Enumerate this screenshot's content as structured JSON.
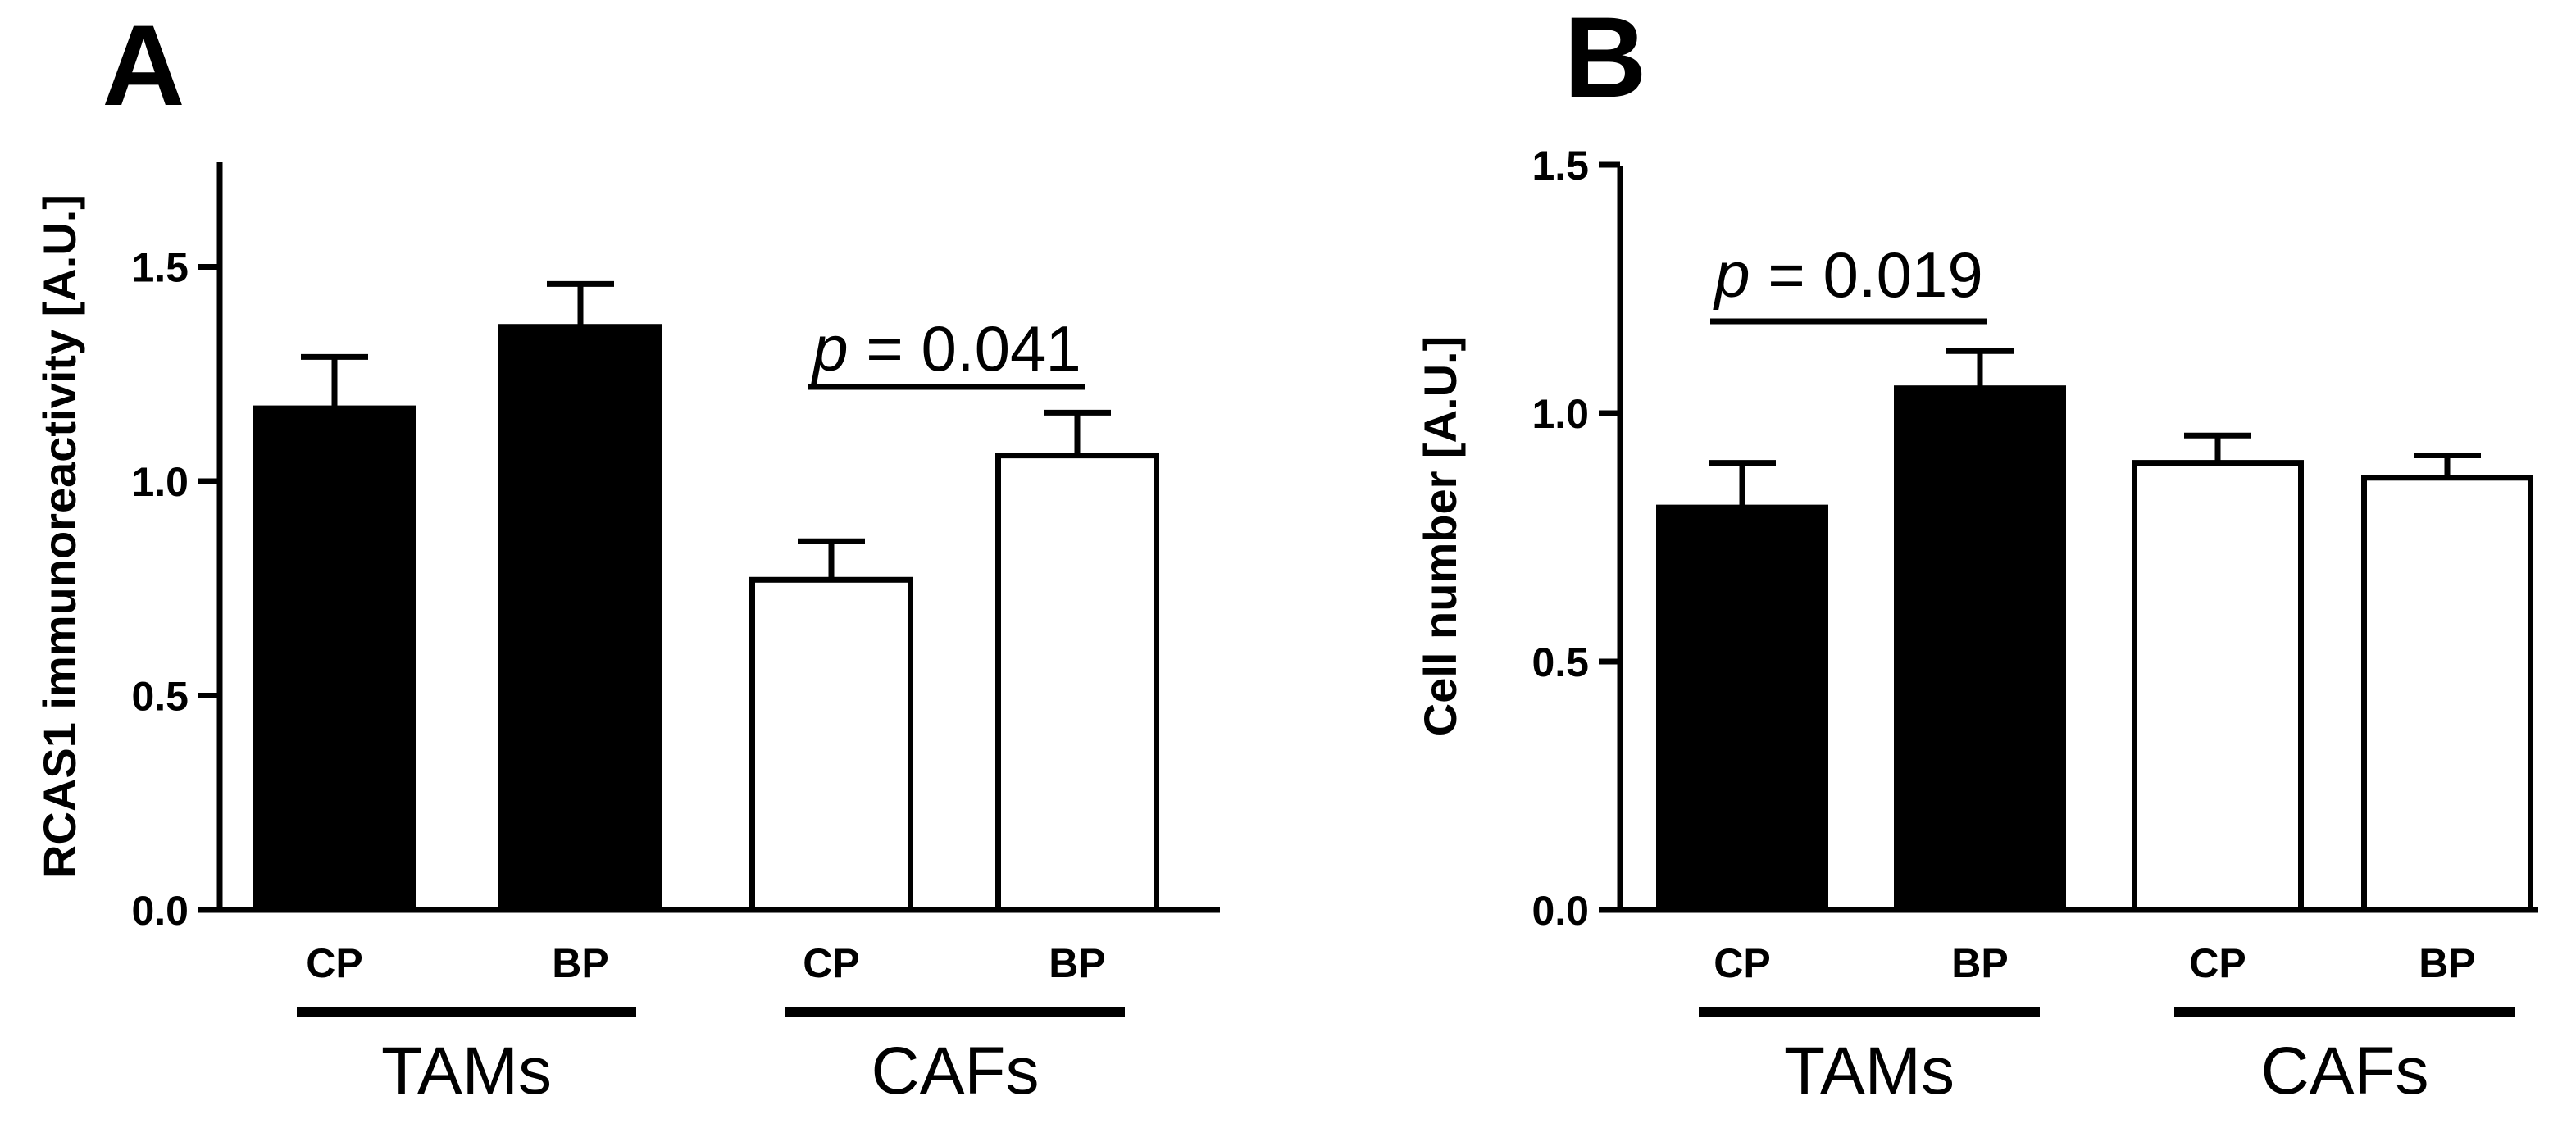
{
  "chart_data": [
    {
      "panel": "A",
      "type": "bar",
      "ylabel": "RCAS1 immunoreactivity [A.U.]",
      "ylim": [
        0,
        1.75
      ],
      "yticks": [
        0.0,
        0.5,
        1.0,
        1.5
      ],
      "yticklabels": [
        "0.0",
        "0.5",
        "1.0",
        "1.5"
      ],
      "categories": [
        "CP",
        "BP",
        "CP",
        "BP"
      ],
      "groups": [
        {
          "label": "TAMs",
          "indices": [
            0,
            1
          ]
        },
        {
          "label": "CAFs",
          "indices": [
            2,
            3
          ]
        }
      ],
      "values": [
        1.17,
        1.36,
        0.77,
        1.06
      ],
      "errors": [
        0.12,
        0.1,
        0.09,
        0.1
      ],
      "fill": [
        "#000000",
        "#000000",
        "#ffffff",
        "#ffffff"
      ],
      "annotation": {
        "p_symbol": "p",
        "text": " = 0.041",
        "between": [
          2,
          3
        ]
      }
    },
    {
      "panel": "B",
      "type": "bar",
      "ylabel": "Cell number [A.U.]",
      "ylim": [
        0,
        1.5
      ],
      "yticks": [
        0.0,
        0.5,
        1.0,
        1.5
      ],
      "yticklabels": [
        "0.0",
        "0.5",
        "1.0",
        "1.5"
      ],
      "categories": [
        "CP",
        "BP",
        "CP",
        "BP"
      ],
      "groups": [
        {
          "label": "TAMs",
          "indices": [
            0,
            1
          ]
        },
        {
          "label": "CAFs",
          "indices": [
            2,
            3
          ]
        }
      ],
      "values": [
        0.81,
        1.05,
        0.9,
        0.87
      ],
      "errors": [
        0.09,
        0.075,
        0.055,
        0.045
      ],
      "fill": [
        "#000000",
        "#000000",
        "#ffffff",
        "#ffffff"
      ],
      "annotation": {
        "p_symbol": "p",
        "text": " = 0.019",
        "between": [
          0,
          1
        ]
      }
    }
  ]
}
